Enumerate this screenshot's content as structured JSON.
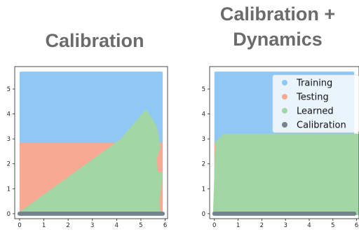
{
  "colors": {
    "training": "#8fc8f4",
    "testing": "#f7a993",
    "learned": "#a3d6a5",
    "calibration": "#74848f",
    "axis": "#222222",
    "title": "#6b6b6b"
  },
  "chart_data": [
    {
      "type": "area",
      "title": "Calibration",
      "xlabel": "",
      "ylabel": "",
      "xlim": [
        -0.2,
        6.1
      ],
      "ylim": [
        -0.2,
        5.9
      ],
      "xticks": [
        0,
        1,
        2,
        3,
        4,
        5,
        6
      ],
      "yticks": [
        0,
        1,
        2,
        3,
        4,
        5
      ],
      "grid": false,
      "legend": null,
      "regions": {
        "training": {
          "x": [
            0,
            5.9
          ],
          "y": [
            0,
            5.7
          ]
        },
        "testing": {
          "x": [
            0,
            5.9
          ],
          "y": [
            0,
            2.85
          ]
        },
        "calibration": {
          "x": [
            0,
            5.9
          ],
          "y": [
            0,
            0
          ]
        }
      },
      "learned_boundary": [
        [
          0,
          0
        ],
        [
          4.2,
          2.95
        ],
        [
          5.2,
          4.1
        ],
        [
          5.6,
          3.5
        ],
        [
          5.75,
          2.7
        ],
        [
          5.6,
          2.2
        ],
        [
          5.65,
          1.6
        ],
        [
          5.85,
          1.6
        ],
        [
          5.7,
          0.5
        ],
        [
          5.75,
          0
        ],
        [
          0,
          0
        ]
      ]
    },
    {
      "type": "area",
      "title": "Calibration +\nDynamics",
      "xlabel": "",
      "ylabel": "",
      "xlim": [
        -0.2,
        6.1
      ],
      "ylim": [
        -0.2,
        5.9
      ],
      "xticks": [
        0,
        1,
        2,
        3,
        4,
        5,
        6
      ],
      "yticks": [
        0,
        1,
        2,
        3,
        4,
        5
      ],
      "grid": false,
      "legend": {
        "placement": "top-right",
        "entries": [
          "Training",
          "Testing",
          "Learned",
          "Calibration"
        ]
      },
      "regions": {
        "training": {
          "x": [
            0,
            5.9
          ],
          "y": [
            0,
            5.7
          ]
        },
        "testing": {
          "x": [
            0,
            5.9
          ],
          "y": [
            0,
            2.85
          ]
        },
        "calibration": {
          "x": [
            0,
            5.9
          ],
          "y": [
            0,
            0
          ]
        }
      },
      "learned_boundary": [
        [
          0,
          0
        ],
        [
          0.1,
          2.85
        ],
        [
          0.4,
          3.15
        ],
        [
          6.1,
          3.15
        ],
        [
          6.1,
          0
        ],
        [
          0,
          0
        ]
      ]
    }
  ]
}
